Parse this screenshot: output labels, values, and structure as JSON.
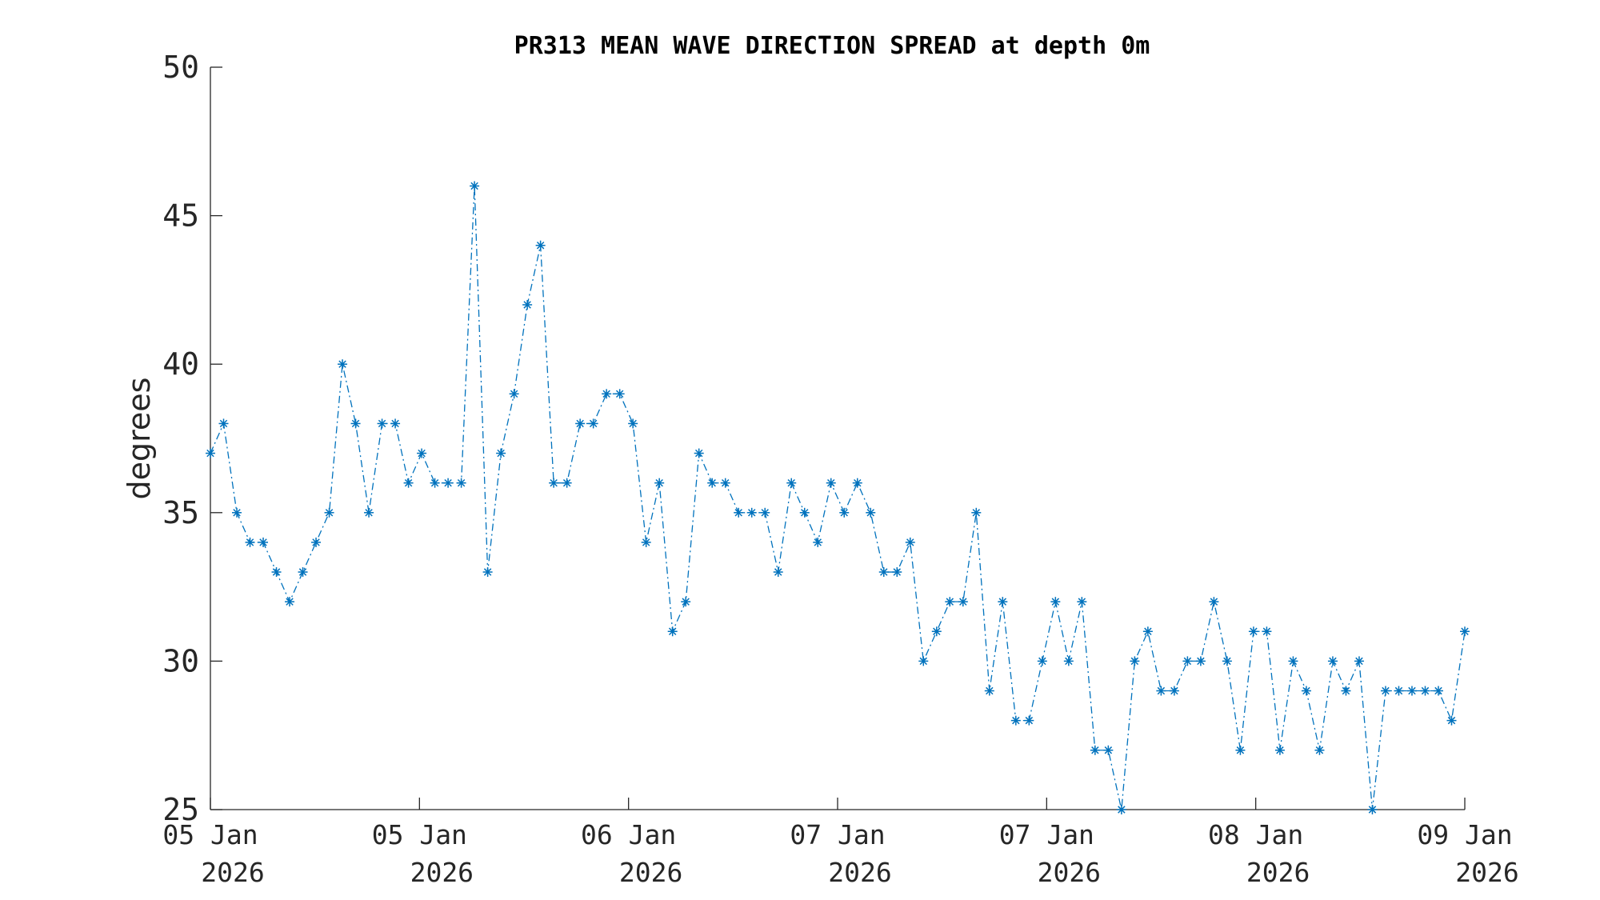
{
  "chart_data": {
    "type": "line",
    "title": "PR313 MEAN WAVE DIRECTION SPREAD at depth 0m",
    "xlabel": "",
    "ylabel": "degrees",
    "ylim": [
      25,
      50
    ],
    "yticks": [
      "25",
      "30",
      "35",
      "40",
      "45",
      "50"
    ],
    "xlim": [
      "2026-01-05 00:00",
      "2026-01-09 00:00"
    ],
    "xticks": [
      {
        "line1": "05 Jan",
        "line2": "2026"
      },
      {
        "line1": "05 Jan",
        "line2": "2026"
      },
      {
        "line1": "06 Jan",
        "line2": "2026"
      },
      {
        "line1": "07 Jan",
        "line2": "2026"
      },
      {
        "line1": "07 Jan",
        "line2": "2026"
      },
      {
        "line1": "08 Jan",
        "line2": "2026"
      },
      {
        "line1": "09 Jan",
        "line2": "2026"
      }
    ],
    "grid": false,
    "marker": "asterisk",
    "line_style": "dash-dot",
    "color": "#0072bd",
    "series": [
      {
        "values": [
          37,
          38,
          35,
          34,
          34,
          33,
          32,
          33,
          34,
          35,
          40,
          38,
          35,
          38,
          38,
          36,
          37,
          36,
          36,
          36,
          46,
          33,
          37,
          39,
          42,
          44,
          36,
          36,
          38,
          38,
          39,
          39,
          38,
          34,
          36,
          31,
          32,
          37,
          36,
          36,
          35,
          35,
          35,
          33,
          36,
          35,
          34,
          36,
          35,
          36,
          35,
          33,
          33,
          34,
          30,
          31,
          32,
          32,
          35,
          29,
          32,
          28,
          28,
          30,
          32,
          30,
          32,
          27,
          27,
          25,
          30,
          31,
          29,
          29,
          30,
          30,
          32,
          30,
          27,
          31,
          31,
          27,
          30,
          29,
          27,
          30,
          29,
          30,
          25,
          29,
          29,
          29,
          29,
          29,
          28,
          31
        ]
      }
    ]
  }
}
